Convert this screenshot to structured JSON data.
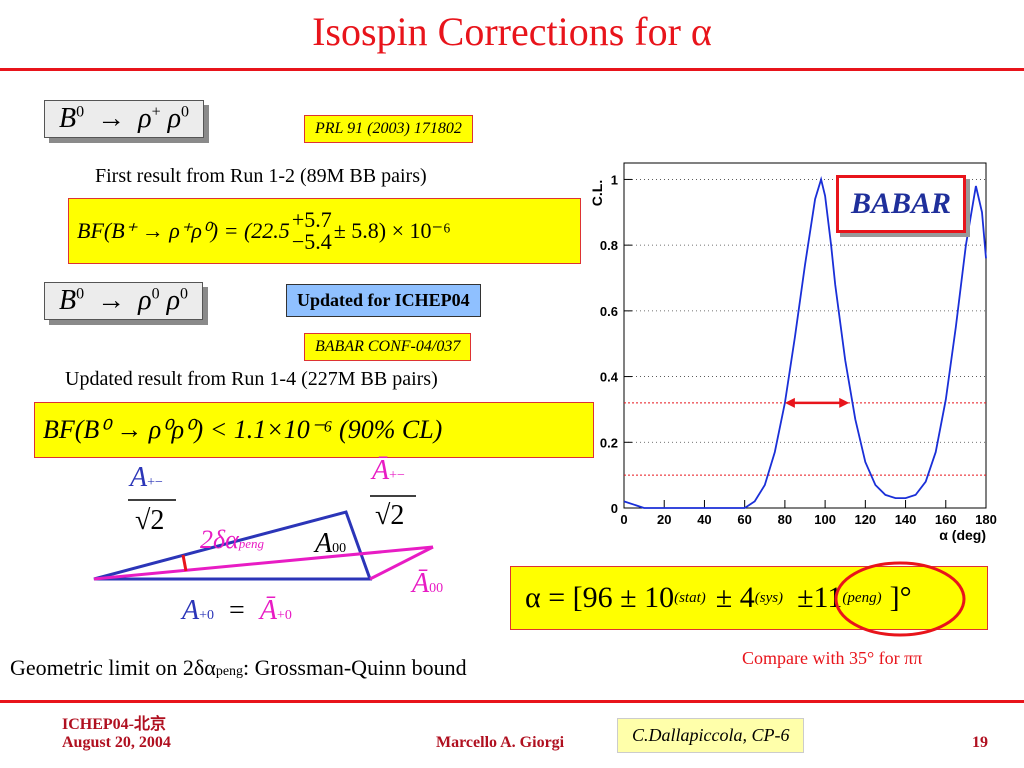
{
  "title": "Isospin Corrections for α",
  "reaction1": {
    "B": "B",
    "sup_B": "0",
    "arrow": "→",
    "p1": "ρ",
    "sup1": "+",
    "p2": "ρ",
    "sup2": "0"
  },
  "reaction2": {
    "B": "B",
    "sup_B": "0",
    "arrow": "→",
    "p1": "ρ",
    "sup1": "0",
    "p2": "ρ",
    "sup2": "0"
  },
  "ref1": "PRL 91 (2003) 171802",
  "ref2": "BABAR CONF-04/037",
  "updated_badge": "Updated for ICHEP04",
  "first_result": "First result from Run 1-2 (89M BB pairs)",
  "updated_result": "Updated result from Run 1-4 (227M BB pairs)",
  "bf1": {
    "lhs": "BF(B⁺ → ρ⁺ρ⁰) = (22.5",
    "up": "+5.7",
    "down": "−5.4",
    "rhs": "± 5.8) × 10⁻⁶"
  },
  "bf2": "BF(B⁰ → ρ⁰ρ⁰) < 1.1×10⁻⁶ (90% CL)",
  "triangle": {
    "a_plus_minus": "A",
    "a_plus_minus_sub": "+−",
    "sqrt2": "√2",
    "abar_plus_minus": "Ā",
    "delta_label": "2δα",
    "delta_sub": "peng",
    "a00": "A",
    "a00_sub": "00",
    "abar00": "Ā",
    "abar00_sub": "00",
    "a_plus0": "A",
    "a_plus0_sub": "+0",
    "equals": "=",
    "abar_plus0": "Ā",
    "abar_plus0_sub": "+0"
  },
  "geometric_limit": "Geometric limit on 2δα",
  "geometric_limit_sub": "peng",
  "geometric_limit_tail": ": Grossman-Quinn bound",
  "alpha_result": {
    "lhs": "α = [96 ± 10",
    "stat": "(stat)",
    "sys_val": "± 4",
    "sys": "(sys)",
    "peng_val": "±11",
    "peng": "(peng)",
    "unit": "]°"
  },
  "compare": "Compare with 35° for ππ",
  "babar_logo": "BABAR",
  "footer": {
    "conf": "ICHEP04-北京",
    "date": "August 20, 2004",
    "author": "Marcello A. Giorgi",
    "speaker": "C.Dallapiccola, CP-6",
    "page": "19"
  },
  "chart_data": {
    "type": "line",
    "title": "",
    "xlabel": "α (deg)",
    "ylabel": "C.L.",
    "xlim": [
      0,
      180
    ],
    "ylim": [
      0,
      1.05
    ],
    "xticks": [
      0,
      20,
      40,
      60,
      80,
      100,
      120,
      140,
      160,
      180
    ],
    "yticks": [
      0,
      0.2,
      0.4,
      0.6,
      0.8,
      1
    ],
    "grid": "horizontal dotted",
    "series": [
      {
        "color": "#1a2fd8",
        "x": [
          0,
          5,
          10,
          15,
          20,
          25,
          30,
          35,
          40,
          45,
          50,
          55,
          60,
          65,
          70,
          75,
          80,
          85,
          90,
          95,
          98,
          100,
          103,
          105,
          110,
          115,
          120,
          125,
          130,
          135,
          140,
          145,
          150,
          155,
          160,
          165,
          170,
          175,
          178,
          180
        ],
        "y": [
          0.02,
          0.01,
          0.0,
          0.0,
          0.0,
          0.0,
          0.0,
          0.0,
          0.0,
          0.0,
          0.0,
          0.0,
          0.0,
          0.02,
          0.07,
          0.17,
          0.32,
          0.52,
          0.74,
          0.94,
          1.0,
          0.95,
          0.8,
          0.68,
          0.45,
          0.27,
          0.14,
          0.07,
          0.04,
          0.03,
          0.03,
          0.04,
          0.08,
          0.17,
          0.33,
          0.55,
          0.8,
          0.98,
          0.9,
          0.76
        ]
      }
    ],
    "reference_lines": [
      {
        "y": 0.32,
        "color": "#e8141b",
        "style": "dotted"
      },
      {
        "y": 0.1,
        "color": "#e8141b",
        "style": "dotted"
      }
    ],
    "interval_arrow": {
      "x_from": 80,
      "x_to": 112,
      "y": 0.32,
      "color": "#e8141b"
    }
  }
}
